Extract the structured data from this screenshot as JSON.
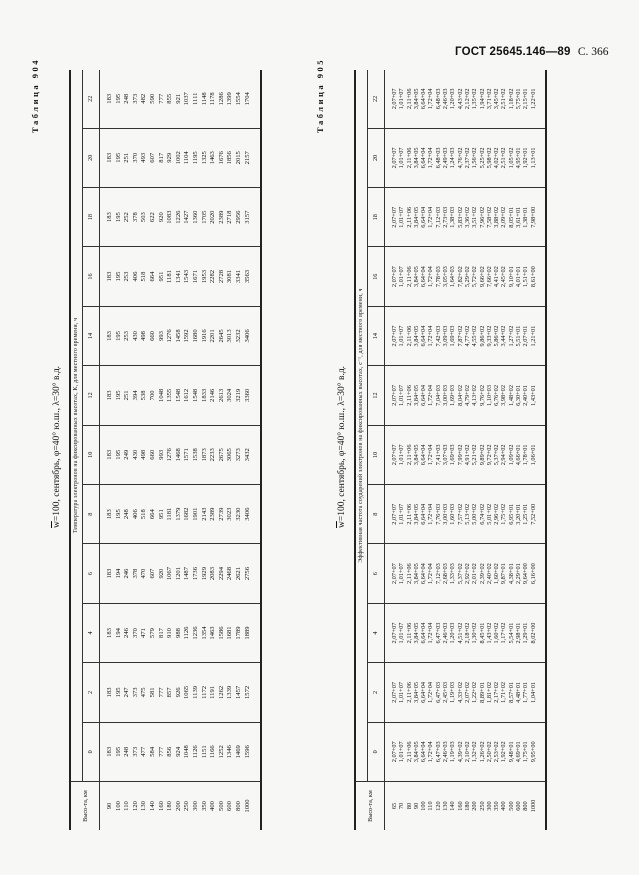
{
  "page_header": {
    "standard": "ГОСТ 25645.146—89",
    "page": "С. 366"
  },
  "common_caption": {
    "w_label": "w",
    "params": "=100, сентябрь, φ=40° ю.ш., λ=30° в.д."
  },
  "table904": {
    "number_label": "Таблица 904",
    "altitude_header": "Высо-та, км",
    "group_header": "Температура электронов на фиксированных высотах, K, для местного времени, ч",
    "hours": [
      "0",
      "2",
      "4",
      "6",
      "8",
      "10",
      "12",
      "14",
      "16",
      "18",
      "20",
      "22"
    ],
    "altitudes": [
      "90",
      "100",
      "110",
      "120",
      "130",
      "140",
      "160",
      "180",
      "200",
      "250",
      "300",
      "350",
      "400",
      "500",
      "600",
      "800",
      "1000"
    ],
    "columns": [
      [
        "183",
        "195",
        "248",
        "373",
        "477",
        "584",
        "777",
        "856",
        "924",
        "1048",
        "1126",
        "1151",
        "1166",
        "1252",
        "1346",
        "1469",
        "1596"
      ],
      [
        "183",
        "195",
        "247",
        "373",
        "475",
        "581",
        "777",
        "857",
        "926",
        "1065",
        "1139",
        "1172",
        "1191",
        "1262",
        "1339",
        "1457",
        "1572"
      ],
      [
        "183",
        "194",
        "246",
        "370",
        "471",
        "579",
        "817",
        "910",
        "988",
        "1126",
        "1236",
        "1354",
        "1463",
        "1586",
        "1681",
        "1789",
        "1889"
      ],
      [
        "183",
        "194",
        "246",
        "378",
        "470",
        "607",
        "920",
        "1067",
        "1201",
        "1487",
        "1736",
        "1929",
        "2083",
        "2294",
        "2468",
        "2621",
        "2756"
      ],
      [
        "183",
        "195",
        "248",
        "406",
        "518",
        "664",
        "951",
        "1181",
        "1379",
        "1682",
        "1901",
        "2143",
        "2389",
        "2739",
        "3023",
        "3230",
        "3406"
      ],
      [
        "183",
        "195",
        "249",
        "430",
        "498",
        "660",
        "993",
        "1276",
        "1468",
        "1571",
        "1538",
        "1873",
        "2233",
        "2675",
        "3065",
        "3273",
        "3432"
      ],
      [
        "183",
        "195",
        "251",
        "394",
        "538",
        "700",
        "1048",
        "1355",
        "1548",
        "1612",
        "1548",
        "1833",
        "2146",
        "2613",
        "3024",
        "3219",
        "3360"
      ],
      [
        "183",
        "195",
        "253",
        "430",
        "498",
        "660",
        "993",
        "1276",
        "1458",
        "1592",
        "1680",
        "1916",
        "2201",
        "2645",
        "3013",
        "3232",
        "3406"
      ],
      [
        "183",
        "195",
        "253",
        "406",
        "518",
        "664",
        "951",
        "1181",
        "1341",
        "1543",
        "1671",
        "1953",
        "2282",
        "2728",
        "3081",
        "3341",
        "3563"
      ],
      [
        "183",
        "195",
        "252",
        "378",
        "503",
        "622",
        "920",
        "1083",
        "1226",
        "1427",
        "1360",
        "1705",
        "2020",
        "2389",
        "2718",
        "2956",
        "3157"
      ],
      [
        "183",
        "195",
        "251",
        "370",
        "493",
        "607",
        "817",
        "929",
        "1002",
        "1104",
        "1195",
        "1325",
        "1463",
        "1676",
        "1856",
        "2015",
        "2157"
      ],
      [
        "183",
        "195",
        "248",
        "373",
        "482",
        "590",
        "777",
        "855",
        "921",
        "1037",
        "1111",
        "1148",
        "1178",
        "1286",
        "1399",
        "1554",
        "1704"
      ]
    ]
  },
  "table905": {
    "number_label": "Таблица 905",
    "altitude_header": "Высо-та, км",
    "group_header": "Эффективная частота соударений электронов на фиксированных высотах, с⁻¹, для местного времени, ч",
    "hours": [
      "0",
      "2",
      "4",
      "6",
      "8",
      "10",
      "12",
      "14",
      "16",
      "18",
      "20",
      "22"
    ],
    "altitudes": [
      "65",
      "70",
      "80",
      "90",
      "100",
      "110",
      "120",
      "130",
      "140",
      "160",
      "180",
      "200",
      "250",
      "300",
      "350",
      "400",
      "500",
      "600",
      "800",
      "1000"
    ],
    "columns": [
      [
        "2,07+07",
        "1,01+07",
        "2,11+06",
        "3,84+05",
        "6,64+04",
        "1,72+04",
        "6,47+03",
        "2,46+03",
        "1,19+03",
        "4,39+02",
        "2,10+02",
        "1,32+02",
        "1,26+02",
        "2,50+02",
        "2,53+02",
        "1,92+02",
        "9,48+01",
        "4,69+01",
        "1,75+01",
        "9,95+00"
      ],
      [
        "2,07+07",
        "1,01+07",
        "2,11+06",
        "3,84+05",
        "6,64+04",
        "1,72+04",
        "6,47+03",
        "2,45+03",
        "1,19+03",
        "4,33+02",
        "2,07+02",
        "1,22+02",
        "8,89+01",
        "1,81+02",
        "2,17+02",
        "1,71+02",
        "8,57+01",
        "4,48+01",
        "1,77+01",
        "1,04+01"
      ],
      [
        "2,07+07",
        "1,01+07",
        "2,11+06",
        "3,84+05",
        "6,64+04",
        "1,72+04",
        "6,47+03",
        "2,46+03",
        "1,20+03",
        "4,51+02",
        "2,18+02",
        "1,30+02",
        "8,45+01",
        "1,43+02",
        "1,60+02",
        "1,17+02",
        "5,54+01",
        "2,98+01",
        "1,29+01",
        "8,02+00"
      ],
      [
        "2,07+07",
        "1,01+07",
        "2,11+06",
        "3,84+05",
        "6,64+04",
        "1,72+04",
        "7,12+03",
        "2,68+03",
        "1,33+03",
        "5,37+02",
        "2,92+02",
        "2,01+02",
        "2,39+02",
        "2,40+02",
        "1,60+02",
        "9,87+01",
        "4,38+01",
        "2,29+01",
        "9,64+00",
        "6,16+00"
      ],
      [
        "2,07+07",
        "1,01+07",
        "2,11+06",
        "3,84+05",
        "6,64+04",
        "1,72+04",
        "7,76+03",
        "3,00+03",
        "1,60+03",
        "7,57+02",
        "5,13+02",
        "5,00+02",
        "6,74+02",
        "5,01+02",
        "2,96+02",
        "1,75+02",
        "6,95+01",
        "3,20+01",
        "1,25+01",
        "7,52+00"
      ],
      [
        "2,07+07",
        "1,01+07",
        "2,11+06",
        "3,84+05",
        "6,64+04",
        "1,72+04",
        "7,41+03",
        "3,07+03",
        "1,69+03",
        "7,99+02",
        "4,91+02",
        "5,21+02",
        "9,89+02",
        "9,72+02",
        "5,37+02",
        "2,94+02",
        "1,09+02",
        "4,66+01",
        "1,78+01",
        "1,06+01"
      ],
      [
        "2,07+07",
        "1,01+07",
        "2,11+06",
        "3,84+05",
        "6,64+04",
        "1,72+04",
        "7,04+03",
        "3,00+03",
        "1,69+03",
        "8,04+02",
        "4,79+02",
        "4,13+02",
        "9,76+02",
        "1,10+03",
        "6,76+02",
        "3,98+02",
        "1,48+02",
        "6,30+01",
        "2,40+01",
        "1,43+01"
      ],
      [
        "2,07+07",
        "1,01+07",
        "2,11+06",
        "3,84+05",
        "6,64+04",
        "1,72+04",
        "7,42+03",
        "3,09+03",
        "1,69+03",
        "7,87+02",
        "4,77+02",
        "4,55+02",
        "9,86+02",
        "9,33+02",
        "5,86+02",
        "3,44+02",
        "1,27+02",
        "5,51+01",
        "2,07+01",
        "1,21+01"
      ],
      [
        "2,07+07",
        "1,01+07",
        "2,11+06",
        "3,84+05",
        "6,64+04",
        "1,72+04",
        "7,78+03",
        "3,05+03",
        "1,64+03",
        "7,82+02",
        "5,29+02",
        "5,72+02",
        "9,66+02",
        "7,66+02",
        "4,41+02",
        "2,45+02",
        "9,10+01",
        "4,01+01",
        "1,51+01",
        "8,61+00"
      ],
      [
        "2,07+07",
        "1,01+07",
        "2,11+06",
        "3,84+05",
        "6,64+04",
        "1,72+04",
        "7,12+03",
        "2,73+03",
        "1,38+03",
        "5,83+02",
        "3,36+02",
        "3,51+02",
        "7,96+02",
        "7,58+02",
        "3,88+02",
        "2,09+02",
        "8,05+01",
        "3,61+01",
        "1,38+01",
        "7,98+00"
      ],
      [
        "2,07+07",
        "1,01+07",
        "2,11+06",
        "3,84+05",
        "6,64+04",
        "1,72+04",
        "6,48+03",
        "2,49+03",
        "1,24+03",
        "4,76+02",
        "2,37+02",
        "1,56+02",
        "5,25+02",
        "5,98+02",
        "4,02+02",
        "2,51+02",
        "1,05+02",
        "4,95+01",
        "1,92+01",
        "1,13+01"
      ],
      [
        "2,07+07",
        "1,01+07",
        "2,11+06",
        "3,84+05",
        "6,64+04",
        "1,72+04",
        "6,48+03",
        "2,46+03",
        "1,20+03",
        "4,43+02",
        "2,12+02",
        "1,35+02",
        "1,94+02",
        "3,71+02",
        "3,45+02",
        "2,51+02",
        "1,18+02",
        "5,75+01",
        "2,15+01",
        "1,22+01"
      ]
    ]
  }
}
